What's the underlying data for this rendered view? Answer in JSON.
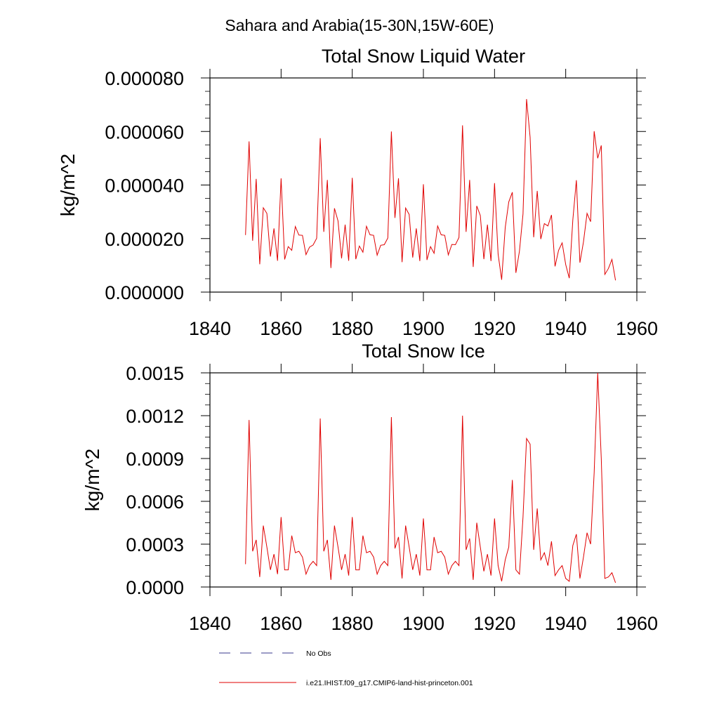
{
  "figure_title": "Sahara and Arabia(15-30N,15W-60E)",
  "legend": [
    {
      "label": "No Obs",
      "color": "#3a3a8c",
      "dash": "dashed"
    },
    {
      "label": "i.e21.IHIST.f09_g17.CMIP6-land-hist-princeton.001",
      "color": "#e00000",
      "dash": "solid"
    }
  ],
  "chart_data": [
    {
      "type": "line",
      "title": "Total Snow Liquid Water",
      "xlabel": "",
      "ylabel": "kg/m^2",
      "xlim": [
        1840,
        1960
      ],
      "ylim": [
        0,
        8e-05
      ],
      "x_ticks": [
        1840,
        1860,
        1880,
        1900,
        1920,
        1940,
        1960
      ],
      "x_tick_labels": [
        "1840",
        "1860",
        "1880",
        "1900",
        "1920",
        "1940",
        "1960"
      ],
      "y_ticks": [
        0,
        2e-05,
        4e-05,
        6e-05,
        8e-05
      ],
      "y_tick_labels": [
        "0.000000",
        "0.000020",
        "0.000040",
        "0.000060",
        "0.000080"
      ],
      "grid": false,
      "legend_position": "bottom",
      "series": [
        {
          "name": "i.e21.IHIST.f09_g17.CMIP6-land-hist-princeton.001",
          "color": "#e00000",
          "x_start": 1850,
          "x_step": 1,
          "values": [
            2.13e-05,
            5.63e-05,
            1.92e-05,
            4.23e-05,
            1.04e-05,
            3.15e-05,
            2.94e-05,
            1.33e-05,
            2.38e-05,
            1.17e-05,
            4.25e-05,
            1.22e-05,
            1.7e-05,
            1.56e-05,
            2.45e-05,
            2.13e-05,
            2.12e-05,
            1.4e-05,
            1.68e-05,
            1.76e-05,
            2.01e-05,
            5.75e-05,
            2.25e-05,
            4.19e-05,
            9e-06,
            3.13e-05,
            2.66e-05,
            1.26e-05,
            2.52e-05,
            1.17e-05,
            4.27e-05,
            1.23e-05,
            1.72e-05,
            1.49e-05,
            2.46e-05,
            2.14e-05,
            2.12e-05,
            1.38e-05,
            1.75e-05,
            1.77e-05,
            2.02e-05,
            6e-05,
            2.77e-05,
            4.25e-05,
            1.12e-05,
            3.14e-05,
            2.9e-05,
            1.29e-05,
            2.38e-05,
            1.16e-05,
            4.03e-05,
            1.2e-05,
            1.7e-05,
            1.45e-05,
            2.47e-05,
            2.14e-05,
            2.12e-05,
            1.39e-05,
            1.78e-05,
            1.77e-05,
            2.04e-05,
            6.23e-05,
            2.25e-05,
            4.19e-05,
            9.4e-06,
            3.22e-05,
            2.86e-05,
            1.23e-05,
            2.52e-05,
            1.16e-05,
            4.07e-05,
            1.42e-05,
            4.6e-06,
            2.41e-05,
            3.37e-05,
            3.73e-05,
            7.2e-06,
            1.53e-05,
            2.92e-05,
            7.21e-05,
            5.78e-05,
            2.05e-05,
            3.78e-05,
            1.98e-05,
            2.56e-05,
            2.47e-05,
            2.88e-05,
            9.6e-06,
            1.56e-05,
            1.84e-05,
            1.03e-05,
            5.2e-06,
            2.69e-05,
            4.18e-05,
            1.1e-05,
            1.88e-05,
            2.94e-05,
            2.63e-05,
            6.01e-05,
            5e-05,
            5.48e-05,
            6.6e-06,
            8.8e-06,
            1.22e-05,
            4.4e-06
          ]
        }
      ]
    },
    {
      "type": "line",
      "title": "Total Snow Ice",
      "xlabel": "",
      "ylabel": "kg/m^2",
      "xlim": [
        1840,
        1960
      ],
      "ylim": [
        0,
        0.0015
      ],
      "x_ticks": [
        1840,
        1860,
        1880,
        1900,
        1920,
        1940,
        1960
      ],
      "x_tick_labels": [
        "1840",
        "1860",
        "1880",
        "1900",
        "1920",
        "1940",
        "1960"
      ],
      "y_ticks": [
        0,
        0.0003,
        0.0006,
        0.0009,
        0.0012,
        0.0015
      ],
      "y_tick_labels": [
        "0.0000",
        "0.0003",
        "0.0006",
        "0.0009",
        "0.0012",
        "0.0015"
      ],
      "grid": false,
      "legend_position": "bottom",
      "series": [
        {
          "name": "i.e21.IHIST.f09_g17.CMIP6-land-hist-princeton.001",
          "color": "#e00000",
          "x_start": 1850,
          "x_step": 1,
          "values": [
            0.00016,
            0.00117,
            0.00025,
            0.00033,
            7e-05,
            0.00043,
            0.00028,
            0.00012,
            0.00023,
            9e-05,
            0.00049,
            0.00012,
            0.00012,
            0.00036,
            0.00024,
            0.00025,
            0.00021,
            9e-05,
            0.00015,
            0.00018,
            0.00015,
            0.00118,
            0.00025,
            0.00033,
            5e-05,
            0.00043,
            0.00028,
            0.00012,
            0.00023,
            8e-05,
            0.00049,
            0.00012,
            0.00012,
            0.00036,
            0.00024,
            0.00025,
            0.00021,
            9e-05,
            0.00015,
            0.00018,
            0.00015,
            0.00119,
            0.00027,
            0.00035,
            6e-05,
            0.00043,
            0.00028,
            0.00012,
            0.00023,
            8e-05,
            0.00048,
            0.00012,
            0.00012,
            0.00035,
            0.00024,
            0.00025,
            0.00021,
            9e-05,
            0.00015,
            0.00018,
            0.00015,
            0.0012,
            0.00026,
            0.00034,
            5e-05,
            0.00045,
            0.00028,
            0.00011,
            0.00023,
            8e-05,
            0.00048,
            0.00015,
            4e-05,
            0.00019,
            0.00028,
            0.00075,
            0.00012,
            9e-05,
            0.00049,
            0.00104,
            0.001,
            0.00026,
            0.00055,
            0.00019,
            0.00024,
            0.00015,
            0.00032,
            8e-05,
            0.00012,
            0.00015,
            6e-05,
            4e-05,
            0.00029,
            0.00037,
            6e-05,
            0.00021,
            0.00038,
            0.0003,
            0.0008,
            0.0015,
            0.0009,
            6e-05,
            7e-05,
            0.0001,
            3e-05
          ]
        }
      ]
    }
  ]
}
